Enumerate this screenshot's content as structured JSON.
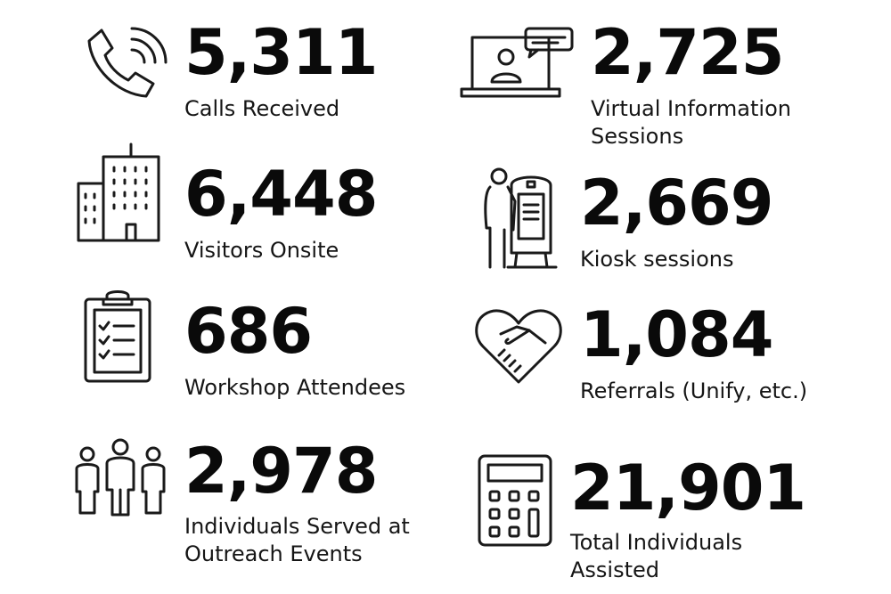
{
  "stats": [
    {
      "value": "5,311",
      "label_lines": [
        "Calls Received"
      ],
      "icon": "phone-call-icon"
    },
    {
      "value": "2,725",
      "label_lines": [
        "Virtual Information",
        "Sessions"
      ],
      "icon": "laptop-video-chat-icon"
    },
    {
      "value": "6,448",
      "label_lines": [
        "Visitors Onsite"
      ],
      "icon": "office-buildings-icon"
    },
    {
      "value": "2,669",
      "label_lines": [
        "Kiosk sessions"
      ],
      "icon": "kiosk-user-icon"
    },
    {
      "value": "686",
      "label_lines": [
        "Workshop Attendees"
      ],
      "icon": "clipboard-checklist-icon"
    },
    {
      "value": "1,084",
      "label_lines": [
        "Referrals (Unify, etc.)"
      ],
      "icon": "handshake-heart-icon"
    },
    {
      "value": "2,978",
      "label_lines": [
        "Individuals Served at",
        "Outreach Events"
      ],
      "icon": "people-group-icon"
    },
    {
      "value": "21,901",
      "label_lines": [
        "Total Individuals",
        "Assisted"
      ],
      "icon": "calculator-icon"
    }
  ]
}
